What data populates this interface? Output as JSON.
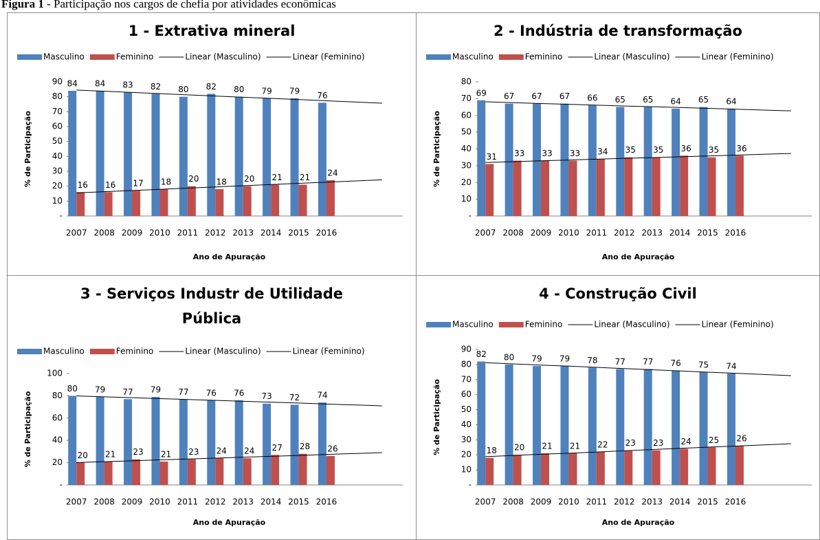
{
  "caption": {
    "label": "Figura 1",
    "text": "- Participação nos cargos de chefia por atividades econômicas"
  },
  "chart_data": [
    {
      "type": "bar",
      "title": "1 - Extrativa mineral",
      "x_label": "Ano de Apuração",
      "y_label": "% de Participação",
      "categories": [
        "2007",
        "2008",
        "2009",
        "2010",
        "2011",
        "2012",
        "2013",
        "2014",
        "2015",
        "2016",
        null,
        null
      ],
      "ylim": [
        0,
        90
      ],
      "yticks": [
        {
          "value": 0,
          "label": "-"
        },
        10,
        20,
        30,
        40,
        50,
        60,
        70,
        80,
        90
      ],
      "series": [
        {
          "name": "Masculino",
          "type": "bar",
          "color": "#4f81bd",
          "values": [
            84,
            84,
            83,
            82,
            80,
            82,
            80,
            79,
            79,
            76,
            null,
            null
          ]
        },
        {
          "name": "Feminino",
          "type": "bar",
          "color": "#c0504d",
          "values": [
            16,
            16,
            17,
            18,
            20,
            18,
            20,
            21,
            21,
            24,
            null,
            null
          ]
        },
        {
          "name": "Linear (Masculino)",
          "type": "line",
          "color": "#000000",
          "values": [
            84.5,
            83.7,
            82.9,
            82.1,
            81.3,
            80.5,
            79.7,
            78.9,
            78.1,
            77.3,
            76.5,
            75.7
          ]
        },
        {
          "name": "Linear (Feminino)",
          "type": "line",
          "color": "#000000",
          "values": [
            15.5,
            16.3,
            17.1,
            17.9,
            18.7,
            19.5,
            20.3,
            21.1,
            21.9,
            22.7,
            23.5,
            24.3
          ]
        }
      ]
    },
    {
      "type": "bar",
      "title": "2 - Indústria de transformação",
      "x_label": "Ano de Apuração",
      "y_label": "% de Participação",
      "categories": [
        "2007",
        "2008",
        "2009",
        "2010",
        "2011",
        "2012",
        "2013",
        "2014",
        "2015",
        "2016",
        null,
        null
      ],
      "ylim": [
        0,
        80
      ],
      "yticks": [
        {
          "value": 0,
          "label": "-"
        },
        10,
        20,
        30,
        40,
        50,
        60,
        70,
        80
      ],
      "series": [
        {
          "name": "Masculino",
          "type": "bar",
          "color": "#4f81bd",
          "values": [
            69,
            67,
            67,
            67,
            66,
            65,
            65,
            64,
            65,
            64,
            null,
            null
          ]
        },
        {
          "name": "Feminino",
          "type": "bar",
          "color": "#c0504d",
          "values": [
            31,
            33,
            33,
            33,
            34,
            35,
            35,
            36,
            35,
            36,
            null,
            null
          ]
        },
        {
          "name": "Linear (Masculino)",
          "type": "line",
          "color": "#000000",
          "values": [
            68.1,
            67.6,
            67.1,
            66.6,
            66.1,
            65.6,
            65.2,
            64.7,
            64.2,
            63.7,
            63.2,
            62.7
          ]
        },
        {
          "name": "Linear (Feminino)",
          "type": "line",
          "color": "#000000",
          "values": [
            31.9,
            32.4,
            32.9,
            33.4,
            33.9,
            34.4,
            34.8,
            35.3,
            35.8,
            36.3,
            36.8,
            37.3
          ]
        }
      ]
    },
    {
      "type": "bar",
      "title": "3 - Serviços Industr de Utilidade Pública",
      "x_label": "Ano de Apuração",
      "y_label": "% de Participação",
      "categories": [
        "2007",
        "2008",
        "2009",
        "2010",
        "2011",
        "2012",
        "2013",
        "2014",
        "2015",
        "2016",
        null,
        null
      ],
      "ylim": [
        0,
        100
      ],
      "yticks": [
        {
          "value": 0,
          "label": "-"
        },
        20,
        40,
        60,
        80,
        100
      ],
      "series": [
        {
          "name": "Masculino",
          "type": "bar",
          "color": "#4f81bd",
          "values": [
            80,
            79,
            77,
            79,
            77,
            76,
            76,
            73,
            72,
            74,
            null,
            null
          ]
        },
        {
          "name": "Feminino",
          "type": "bar",
          "color": "#c0504d",
          "values": [
            20,
            21,
            23,
            21,
            23,
            24,
            24,
            27,
            28,
            26,
            null,
            null
          ]
        },
        {
          "name": "Linear (Masculino)",
          "type": "line",
          "color": "#000000",
          "values": [
            79.9,
            79.1,
            78.3,
            77.5,
            76.7,
            75.9,
            75.1,
            74.3,
            73.5,
            72.6,
            71.8,
            71.0
          ]
        },
        {
          "name": "Linear (Feminino)",
          "type": "line",
          "color": "#000000",
          "values": [
            20.1,
            20.9,
            21.7,
            22.5,
            23.3,
            24.1,
            24.9,
            25.7,
            26.5,
            27.4,
            28.2,
            29.0
          ]
        }
      ]
    },
    {
      "type": "bar",
      "title": "4 - Construção Civil",
      "x_label": "Ano de Apuração",
      "y_label": "% de Participação",
      "categories": [
        "2007",
        "2008",
        "2009",
        "2010",
        "2011",
        "2012",
        "2013",
        "2014",
        "2015",
        "2016",
        null,
        null
      ],
      "ylim": [
        0,
        90
      ],
      "yticks": [
        {
          "value": 0,
          "label": "-"
        },
        10,
        20,
        30,
        40,
        50,
        60,
        70,
        80,
        90
      ],
      "series": [
        {
          "name": "Masculino",
          "type": "bar",
          "color": "#4f81bd",
          "values": [
            82,
            80,
            79,
            79,
            78,
            77,
            77,
            76,
            75,
            74,
            null,
            null
          ]
        },
        {
          "name": "Feminino",
          "type": "bar",
          "color": "#c0504d",
          "values": [
            18,
            20,
            21,
            21,
            22,
            23,
            23,
            24,
            25,
            26,
            null,
            null
          ]
        },
        {
          "name": "Linear (Masculino)",
          "type": "line",
          "color": "#000000",
          "values": [
            81.2,
            80.4,
            79.6,
            78.9,
            78.1,
            77.3,
            76.5,
            75.7,
            74.9,
            74.2,
            73.4,
            72.6
          ]
        },
        {
          "name": "Linear (Feminino)",
          "type": "line",
          "color": "#000000",
          "values": [
            18.8,
            19.6,
            20.4,
            21.1,
            21.9,
            22.7,
            23.5,
            24.3,
            25.1,
            25.8,
            26.6,
            27.4
          ]
        }
      ]
    }
  ]
}
